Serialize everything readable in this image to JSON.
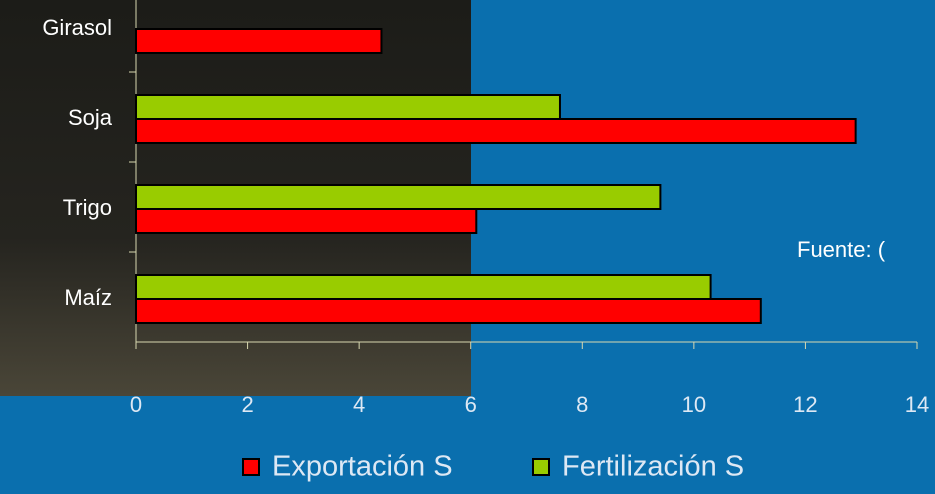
{
  "chart_data": {
    "type": "bar",
    "orientation": "horizontal",
    "categories": [
      "Maíz",
      "Trigo",
      "Soja",
      "Girasol"
    ],
    "series": [
      {
        "name": "Exportación S",
        "color": "#ff0000",
        "values": [
          11.2,
          6.1,
          12.9,
          4.4
        ]
      },
      {
        "name": "Fertilización S",
        "color": "#99cc00",
        "values": [
          10.3,
          9.4,
          7.6,
          null
        ]
      }
    ],
    "xlim": [
      0,
      14
    ],
    "xticks": [
      0,
      2,
      4,
      6,
      8,
      10,
      12,
      14
    ],
    "annotation": "Fuente: ("
  }
}
